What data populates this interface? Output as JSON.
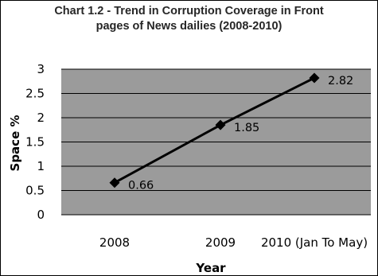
{
  "chart_data": {
    "type": "line",
    "title": "Chart 1.2 - Trend in Corruption Coverage in Front\npages of News dailies (2008-2010)",
    "categories": [
      "2008",
      "2009",
      "2010 (Jan To May)"
    ],
    "values": [
      0.66,
      1.85,
      2.82
    ],
    "data_labels": [
      "0.66",
      "1.85",
      "2.82"
    ],
    "xlabel": "Year",
    "ylabel": "Space %",
    "ylim": [
      0,
      3
    ],
    "y_ticks": [
      {
        "value": 0,
        "label": "0"
      },
      {
        "value": 0.5,
        "label": "0.5"
      },
      {
        "value": 1,
        "label": "1"
      },
      {
        "value": 1.5,
        "label": "1.5"
      },
      {
        "value": 2,
        "label": "2"
      },
      {
        "value": 2.5,
        "label": "2.5"
      },
      {
        "value": 3,
        "label": "3"
      }
    ],
    "grid": true,
    "legend": "none",
    "colors": {
      "plot_background": "#9b9b9b",
      "gridline": "#000000",
      "line": "#000000",
      "marker": "#000000"
    }
  }
}
